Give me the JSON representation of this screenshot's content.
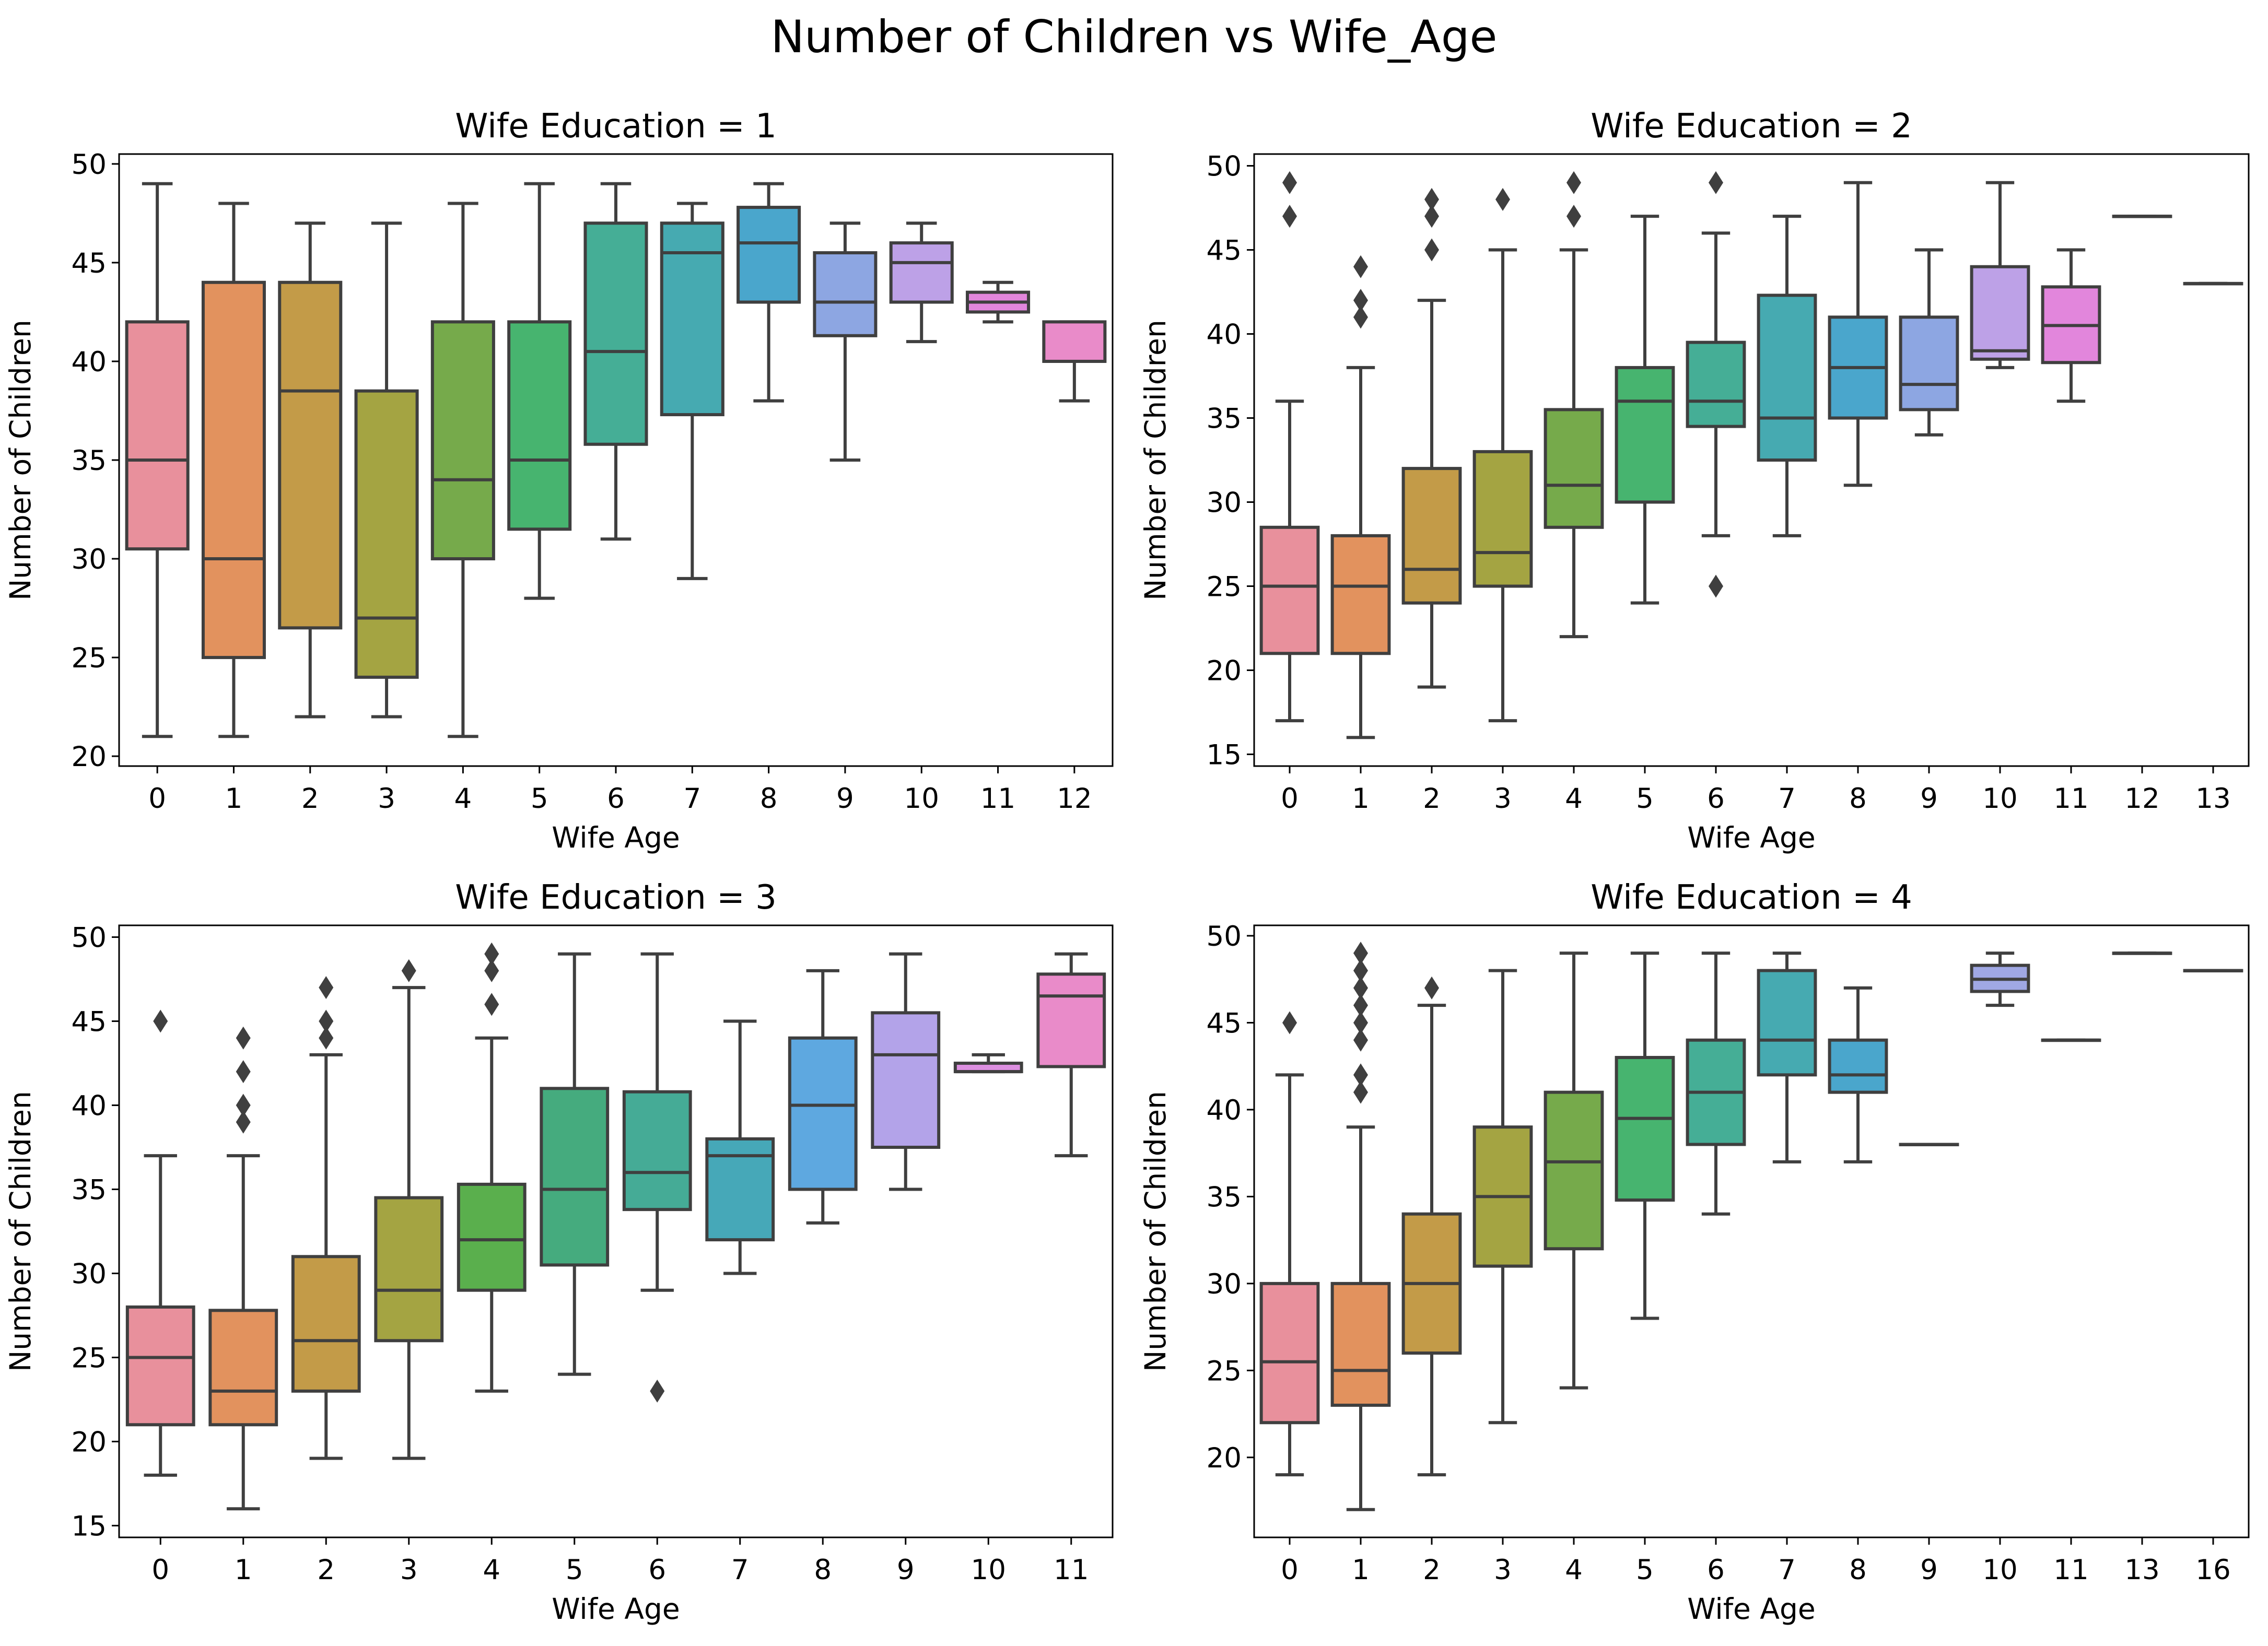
{
  "title": "Number of Children vs Wife_Age",
  "chart_data": [
    {
      "type": "box",
      "title": "Wife Education = 1",
      "xlabel": "Wife Age",
      "ylabel": "Number of Children",
      "ylim": [
        19.5,
        50.5
      ],
      "yticks": [
        20,
        25,
        30,
        35,
        40,
        45,
        50
      ],
      "categories": [
        "0",
        "1",
        "2",
        "3",
        "4",
        "5",
        "6",
        "7",
        "8",
        "9",
        "10",
        "11",
        "12"
      ],
      "boxes": [
        {
          "min": 21,
          "q1": 30.5,
          "median": 35,
          "q3": 42,
          "max": 49,
          "outliers": []
        },
        {
          "min": 21,
          "q1": 25,
          "median": 30,
          "q3": 44,
          "max": 48,
          "outliers": []
        },
        {
          "min": 22,
          "q1": 26.5,
          "median": 38.5,
          "q3": 44,
          "max": 47,
          "outliers": []
        },
        {
          "min": 22,
          "q1": 24,
          "median": 27,
          "q3": 38.5,
          "max": 47,
          "outliers": []
        },
        {
          "min": 21,
          "q1": 30,
          "median": 34,
          "q3": 42,
          "max": 48,
          "outliers": []
        },
        {
          "min": 28,
          "q1": 31.5,
          "median": 35,
          "q3": 42,
          "max": 49,
          "outliers": []
        },
        {
          "min": 31,
          "q1": 35.8,
          "median": 40.5,
          "q3": 47,
          "max": 49,
          "outliers": []
        },
        {
          "min": 29,
          "q1": 37.3,
          "median": 45.5,
          "q3": 47,
          "max": 48,
          "outliers": []
        },
        {
          "min": 38,
          "q1": 43,
          "median": 46,
          "q3": 47.8,
          "max": 49,
          "outliers": []
        },
        {
          "min": 35,
          "q1": 41.3,
          "median": 43,
          "q3": 45.5,
          "max": 47,
          "outliers": []
        },
        {
          "min": 41,
          "q1": 43,
          "median": 45,
          "q3": 46,
          "max": 47,
          "outliers": []
        },
        {
          "min": 42,
          "q1": 42.5,
          "median": 43,
          "q3": 43.5,
          "max": 44,
          "outliers": []
        },
        {
          "min": 38,
          "q1": 40,
          "median": 40,
          "q3": 42,
          "max": 42,
          "outliers": []
        }
      ]
    },
    {
      "type": "box",
      "title": "Wife Education = 2",
      "xlabel": "Wife Age",
      "ylabel": "Number of Children",
      "ylim": [
        14.3,
        50.7
      ],
      "yticks": [
        15,
        20,
        25,
        30,
        35,
        40,
        45,
        50
      ],
      "categories": [
        "0",
        "1",
        "2",
        "3",
        "4",
        "5",
        "6",
        "7",
        "8",
        "9",
        "10",
        "11",
        "12",
        "13"
      ],
      "boxes": [
        {
          "min": 17,
          "q1": 21,
          "median": 25,
          "q3": 28.5,
          "max": 36,
          "outliers": [
            47,
            49
          ]
        },
        {
          "min": 16,
          "q1": 21,
          "median": 25,
          "q3": 28,
          "max": 38,
          "outliers": [
            41,
            42,
            44
          ]
        },
        {
          "min": 19,
          "q1": 24,
          "median": 26,
          "q3": 32,
          "max": 42,
          "outliers": [
            45,
            47,
            48
          ]
        },
        {
          "min": 17,
          "q1": 25,
          "median": 27,
          "q3": 33,
          "max": 45,
          "outliers": [
            48
          ]
        },
        {
          "min": 22,
          "q1": 28.5,
          "median": 31,
          "q3": 35.5,
          "max": 45,
          "outliers": [
            47,
            49
          ]
        },
        {
          "min": 24,
          "q1": 30,
          "median": 36,
          "q3": 38,
          "max": 47,
          "outliers": []
        },
        {
          "min": 28,
          "q1": 34.5,
          "median": 36,
          "q3": 39.5,
          "max": 46,
          "outliers": [
            25,
            49
          ]
        },
        {
          "min": 28,
          "q1": 32.5,
          "median": 35,
          "q3": 42.3,
          "max": 47,
          "outliers": []
        },
        {
          "min": 31,
          "q1": 35,
          "median": 38,
          "q3": 41,
          "max": 49,
          "outliers": []
        },
        {
          "min": 34,
          "q1": 35.5,
          "median": 37,
          "q3": 41,
          "max": 45,
          "outliers": []
        },
        {
          "min": 38,
          "q1": 38.5,
          "median": 39,
          "q3": 44,
          "max": 49,
          "outliers": []
        },
        {
          "min": 36,
          "q1": 38.3,
          "median": 40.5,
          "q3": 42.8,
          "max": 45,
          "outliers": []
        },
        {
          "min": 47,
          "q1": 47,
          "median": 47,
          "q3": 47,
          "max": 47,
          "outliers": []
        },
        {
          "min": 43,
          "q1": 43,
          "median": 43,
          "q3": 43,
          "max": 43,
          "outliers": []
        }
      ]
    },
    {
      "type": "box",
      "title": "Wife Education = 3",
      "xlabel": "Wife Age",
      "ylabel": "Number of Children",
      "ylim": [
        14.3,
        50.7
      ],
      "yticks": [
        15,
        20,
        25,
        30,
        35,
        40,
        45,
        50
      ],
      "categories": [
        "0",
        "1",
        "2",
        "3",
        "4",
        "5",
        "6",
        "7",
        "8",
        "9",
        "10",
        "11"
      ],
      "boxes": [
        {
          "min": 18,
          "q1": 21,
          "median": 25,
          "q3": 28,
          "max": 37,
          "outliers": [
            45
          ]
        },
        {
          "min": 16,
          "q1": 21,
          "median": 23,
          "q3": 27.8,
          "max": 37,
          "outliers": [
            39,
            40,
            42,
            44
          ]
        },
        {
          "min": 19,
          "q1": 23,
          "median": 26,
          "q3": 31,
          "max": 43,
          "outliers": [
            44,
            45,
            47
          ]
        },
        {
          "min": 19,
          "q1": 26,
          "median": 29,
          "q3": 34.5,
          "max": 47,
          "outliers": [
            48
          ]
        },
        {
          "min": 23,
          "q1": 29,
          "median": 32,
          "q3": 35.3,
          "max": 44,
          "outliers": [
            46,
            48,
            49
          ]
        },
        {
          "min": 24,
          "q1": 30.5,
          "median": 35,
          "q3": 41,
          "max": 49,
          "outliers": []
        },
        {
          "min": 29,
          "q1": 33.8,
          "median": 36,
          "q3": 40.8,
          "max": 49,
          "outliers": [
            23
          ]
        },
        {
          "min": 30,
          "q1": 32,
          "median": 37,
          "q3": 38,
          "max": 45,
          "outliers": []
        },
        {
          "min": 33,
          "q1": 35,
          "median": 40,
          "q3": 44,
          "max": 48,
          "outliers": []
        },
        {
          "min": 35,
          "q1": 37.5,
          "median": 43,
          "q3": 45.5,
          "max": 49,
          "outliers": []
        },
        {
          "min": 42,
          "q1": 42,
          "median": 42,
          "q3": 42.5,
          "max": 43,
          "outliers": []
        },
        {
          "min": 37,
          "q1": 42.3,
          "median": 46.5,
          "q3": 47.8,
          "max": 49,
          "outliers": []
        }
      ]
    },
    {
      "type": "box",
      "title": "Wife Education = 4",
      "xlabel": "Wife Age",
      "ylabel": "Number of Children",
      "ylim": [
        15.4,
        50.6
      ],
      "yticks": [
        20,
        25,
        30,
        35,
        40,
        45,
        50
      ],
      "categories": [
        "0",
        "1",
        "2",
        "3",
        "4",
        "5",
        "6",
        "7",
        "8",
        "9",
        "10",
        "11",
        "13",
        "16"
      ],
      "boxes": [
        {
          "min": 19,
          "q1": 22,
          "median": 25.5,
          "q3": 30,
          "max": 42,
          "outliers": [
            45
          ]
        },
        {
          "min": 17,
          "q1": 23,
          "median": 25,
          "q3": 30,
          "max": 39,
          "outliers": [
            41,
            42,
            44,
            45,
            46,
            47,
            48,
            49
          ]
        },
        {
          "min": 19,
          "q1": 26,
          "median": 30,
          "q3": 34,
          "max": 46,
          "outliers": [
            47
          ]
        },
        {
          "min": 22,
          "q1": 31,
          "median": 35,
          "q3": 39,
          "max": 48,
          "outliers": []
        },
        {
          "min": 24,
          "q1": 32,
          "median": 37,
          "q3": 41,
          "max": 49,
          "outliers": []
        },
        {
          "min": 28,
          "q1": 34.8,
          "median": 39.5,
          "q3": 43,
          "max": 49,
          "outliers": []
        },
        {
          "min": 34,
          "q1": 38,
          "median": 41,
          "q3": 44,
          "max": 49,
          "outliers": []
        },
        {
          "min": 37,
          "q1": 42,
          "median": 44,
          "q3": 48,
          "max": 49,
          "outliers": []
        },
        {
          "min": 37,
          "q1": 41,
          "median": 42,
          "q3": 44,
          "max": 47,
          "outliers": []
        },
        {
          "min": 38,
          "q1": 38,
          "median": 38,
          "q3": 38,
          "max": 38,
          "outliers": []
        },
        {
          "min": 46,
          "q1": 46.8,
          "median": 47.5,
          "q3": 48.3,
          "max": 49,
          "outliers": []
        },
        {
          "min": 44,
          "q1": 44,
          "median": 44,
          "q3": 44,
          "max": 44,
          "outliers": []
        },
        {
          "min": 49,
          "q1": 49,
          "median": 49,
          "q3": 49,
          "max": 49,
          "outliers": []
        },
        {
          "min": 48,
          "q1": 48,
          "median": 48,
          "q3": 48,
          "max": 48,
          "outliers": []
        }
      ]
    }
  ],
  "palettes": [
    [
      "#e8909c",
      "#e2925e",
      "#c39b48",
      "#a4a442",
      "#76aa4b",
      "#47b46f",
      "#45ae96",
      "#46aab1",
      "#4aa6cc",
      "#8da6e2",
      "#bda1e7",
      "#e286dc",
      "#e98bc9"
    ],
    [
      "#e8909c",
      "#e2925e",
      "#c39b48",
      "#a4a442",
      "#76aa4b",
      "#47b46f",
      "#45ae96",
      "#46aab1",
      "#4aa6cc",
      "#8da6e2",
      "#bda1e7",
      "#e286dc",
      "#e98bc9",
      "#e98bc9"
    ],
    [
      "#e8909c",
      "#e2925e",
      "#c39b48",
      "#a4a442",
      "#5aaf4d",
      "#45ab7e",
      "#45ab96",
      "#46a8b8",
      "#5ea8e0",
      "#b3a3e9",
      "#dc8fe0",
      "#e98bc9"
    ],
    [
      "#e8909c",
      "#e2925e",
      "#c39b48",
      "#a4a442",
      "#76aa4b",
      "#47b46f",
      "#45ae96",
      "#46aab1",
      "#4aa6cc",
      "#8da6e2",
      "#a0a8e4",
      "#bda1e7",
      "#e286dc",
      "#e98bc9"
    ]
  ]
}
